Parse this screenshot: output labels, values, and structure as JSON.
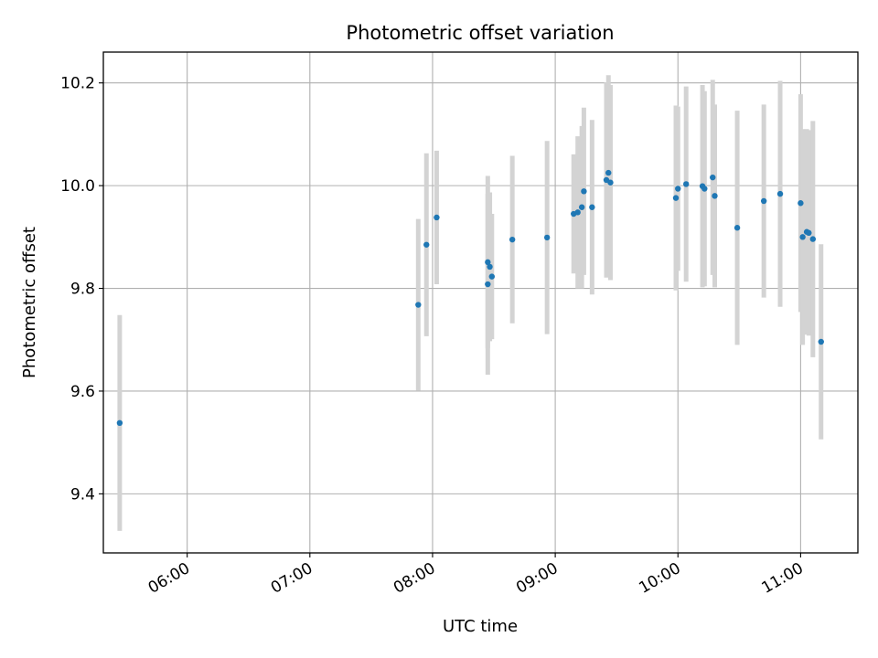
{
  "chart_data": {
    "type": "scatter",
    "title": "Photometric offset variation",
    "xlabel": "UTC time",
    "ylabel": "Photometric offset",
    "x_ticks": [
      "06:00",
      "07:00",
      "08:00",
      "09:00",
      "10:00",
      "11:00"
    ],
    "y_ticks": [
      "9.4",
      "9.6",
      "9.8",
      "10.0",
      "10.2"
    ],
    "x_tick_values": [
      "06:00",
      "07:00",
      "08:00",
      "09:00",
      "10:00",
      "11:00"
    ],
    "y_tick_values": [
      9.4,
      9.6,
      9.8,
      10.0,
      10.2
    ],
    "xlim": [
      "05:19",
      "11:28"
    ],
    "ylim": [
      9.285,
      10.26
    ],
    "grid": true,
    "point_color": "#1f77b4",
    "errorbar_color": "#d3d3d3",
    "points": [
      {
        "x": "05:27",
        "y": 9.538,
        "err": 0.21
      },
      {
        "x": "07:53",
        "y": 9.768,
        "err": 0.167
      },
      {
        "x": "07:57",
        "y": 9.885,
        "err": 0.178
      },
      {
        "x": "08:02",
        "y": 9.938,
        "err": 0.13
      },
      {
        "x": "08:27",
        "y": 9.808,
        "err": 0.176
      },
      {
        "x": "08:27",
        "y": 9.851,
        "err": 0.168
      },
      {
        "x": "08:28",
        "y": 9.842,
        "err": 0.145
      },
      {
        "x": "08:29",
        "y": 9.823,
        "err": 0.122
      },
      {
        "x": "08:39",
        "y": 9.895,
        "err": 0.163
      },
      {
        "x": "08:56",
        "y": 9.899,
        "err": 0.188
      },
      {
        "x": "09:09",
        "y": 9.945,
        "err": 0.116
      },
      {
        "x": "09:11",
        "y": 9.948,
        "err": 0.148
      },
      {
        "x": "09:13",
        "y": 9.958,
        "err": 0.158
      },
      {
        "x": "09:14",
        "y": 9.989,
        "err": 0.163
      },
      {
        "x": "09:18",
        "y": 9.958,
        "err": 0.17
      },
      {
        "x": "09:25",
        "y": 10.011,
        "err": 0.19
      },
      {
        "x": "09:26",
        "y": 10.025,
        "err": 0.19
      },
      {
        "x": "09:27",
        "y": 10.006,
        "err": 0.19
      },
      {
        "x": "09:59",
        "y": 9.976,
        "err": 0.18
      },
      {
        "x": "10:00",
        "y": 9.994,
        "err": 0.16
      },
      {
        "x": "10:04",
        "y": 10.003,
        "err": 0.19
      },
      {
        "x": "10:12",
        "y": 9.999,
        "err": 0.197
      },
      {
        "x": "10:13",
        "y": 9.994,
        "err": 0.19
      },
      {
        "x": "10:17",
        "y": 10.016,
        "err": 0.19
      },
      {
        "x": "10:18",
        "y": 9.98,
        "err": 0.178
      },
      {
        "x": "10:29",
        "y": 9.918,
        "err": 0.228
      },
      {
        "x": "10:42",
        "y": 9.97,
        "err": 0.188
      },
      {
        "x": "10:50",
        "y": 9.984,
        "err": 0.22
      },
      {
        "x": "11:00",
        "y": 9.966,
        "err": 0.212
      },
      {
        "x": "11:01",
        "y": 9.9,
        "err": 0.21
      },
      {
        "x": "11:03",
        "y": 9.91,
        "err": 0.2
      },
      {
        "x": "11:04",
        "y": 9.908,
        "err": 0.2
      },
      {
        "x": "11:06",
        "y": 9.896,
        "err": 0.23
      },
      {
        "x": "11:10",
        "y": 9.696,
        "err": 0.19
      }
    ]
  }
}
